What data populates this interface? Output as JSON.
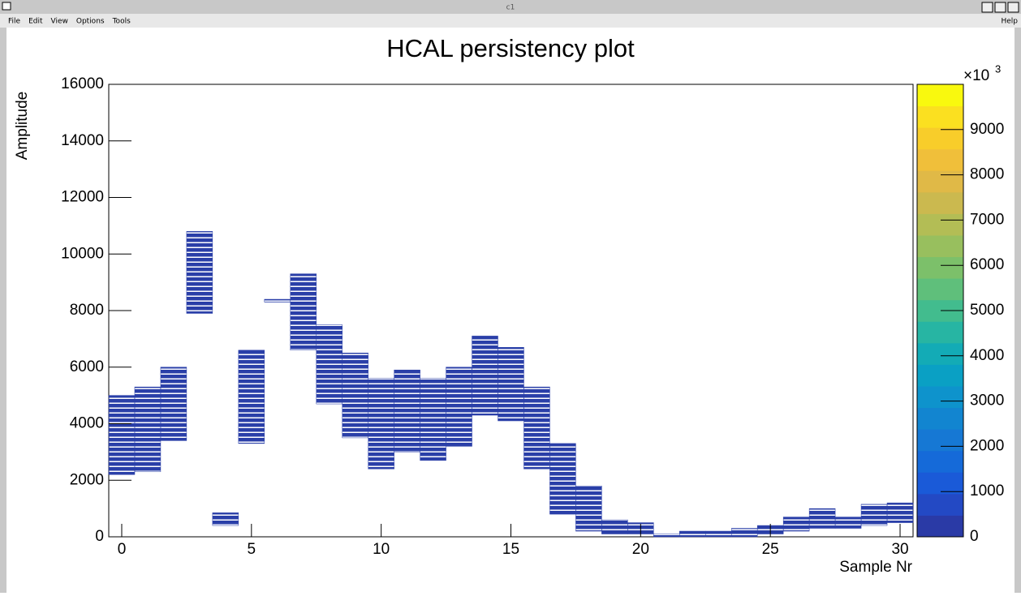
{
  "window": {
    "title": "c1",
    "menu": [
      "File",
      "Edit",
      "View",
      "Options",
      "Tools"
    ],
    "help": "Help"
  },
  "chart_data": {
    "type": "range-bar",
    "title": "HCAL persistency plot",
    "x_label": "Sample Nr",
    "y_label": "Amplitude",
    "x": [
      0,
      1,
      2,
      3,
      4,
      5,
      6,
      7,
      8,
      9,
      10,
      11,
      12,
      13,
      14,
      15,
      16,
      17,
      18,
      19,
      20,
      21,
      22,
      23,
      24,
      25,
      26,
      27,
      28,
      29,
      30
    ],
    "low": [
      2200,
      2300,
      3400,
      7900,
      400,
      3300,
      8300,
      6600,
      4700,
      3500,
      2400,
      3000,
      2700,
      3200,
      4300,
      4100,
      2400,
      800,
      200,
      100,
      100,
      0,
      0,
      0,
      0,
      100,
      200,
      300,
      300,
      400,
      500
    ],
    "high": [
      5000,
      5300,
      6000,
      10800,
      850,
      6600,
      8400,
      9300,
      7500,
      6500,
      5600,
      5900,
      5600,
      6000,
      7100,
      6700,
      5300,
      3300,
      1800,
      600,
      500,
      100,
      200,
      200,
      300,
      400,
      700,
      1000,
      700,
      1150,
      1200
    ],
    "color": "#2a3fa8",
    "xlim": [
      -0.5,
      30.5
    ],
    "xticks": [
      0,
      5,
      10,
      15,
      20,
      25,
      30
    ],
    "ylim": [
      0,
      16000
    ],
    "yticks": [
      0,
      2000,
      4000,
      6000,
      8000,
      10000,
      12000,
      14000,
      16000
    ],
    "zlim": [
      0,
      10000
    ],
    "zticks": [
      0,
      1000,
      2000,
      3000,
      4000,
      5000,
      6000,
      7000,
      8000,
      9000
    ],
    "z_multiplier": "×10",
    "z_exponent": "3",
    "palette": [
      "#2a3aa6",
      "#2349c4",
      "#1a5ad8",
      "#156ad9",
      "#1678d4",
      "#1285d0",
      "#0e93cc",
      "#0aa0c4",
      "#13abb6",
      "#27b5a3",
      "#42bc8e",
      "#5fbf7b",
      "#7cc06a",
      "#98bf5e",
      "#b3bd55",
      "#cbb94f",
      "#e0b947",
      "#f0bf3a",
      "#f8cd2a",
      "#fbe020",
      "#f9f90e"
    ]
  }
}
